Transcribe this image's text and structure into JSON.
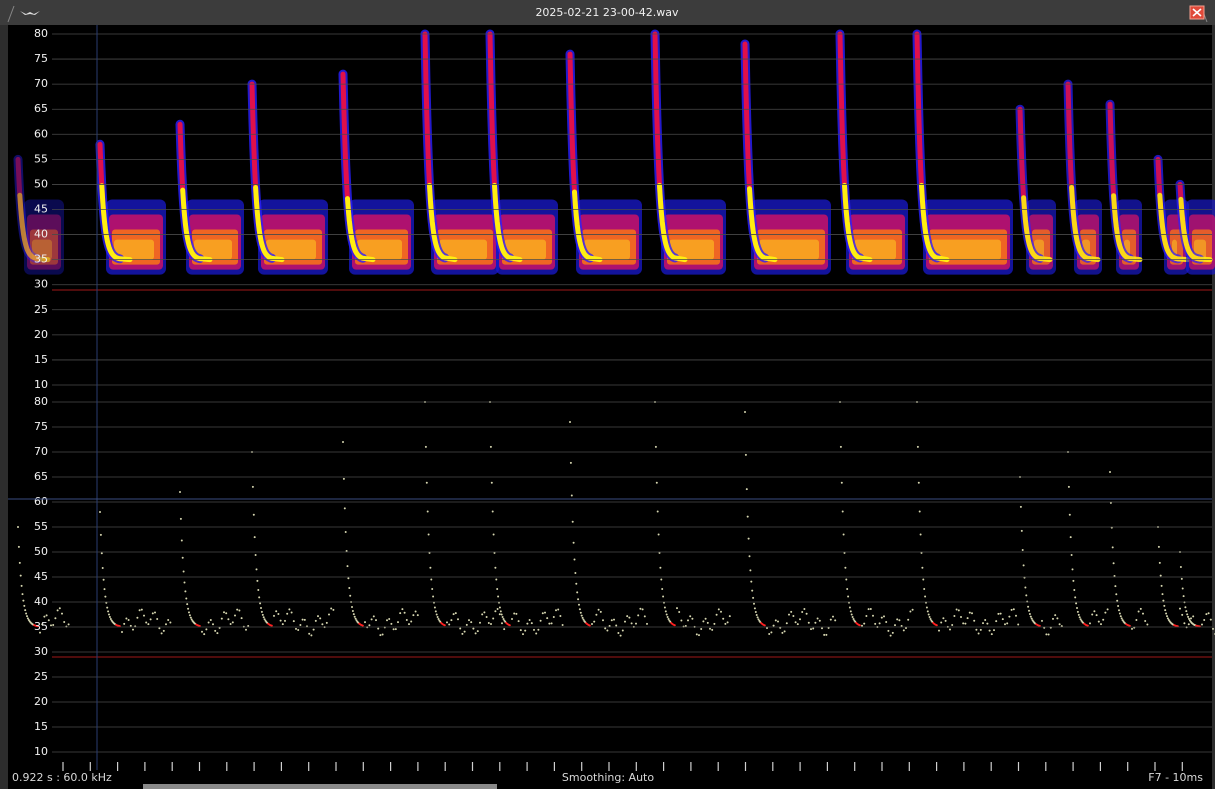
{
  "window": {
    "title": "2025-02-21 23-00-42.wav"
  },
  "spectrogram": {
    "ylim": [
      10,
      80
    ],
    "yticks": [
      80,
      75,
      70,
      65,
      60,
      55,
      50,
      45,
      40,
      35,
      30,
      25,
      20,
      15,
      10
    ]
  },
  "pitch_trace": {
    "ylim": [
      10,
      80
    ],
    "yticks": [
      80,
      75,
      70,
      65,
      60,
      55,
      50,
      45,
      40,
      35,
      30,
      25,
      20,
      15,
      10
    ]
  },
  "status": {
    "cursor": "0.922 s : 60.0 kHz",
    "smoothing": "Smoothing: Auto",
    "mode": "F7 - 10ms"
  }
}
